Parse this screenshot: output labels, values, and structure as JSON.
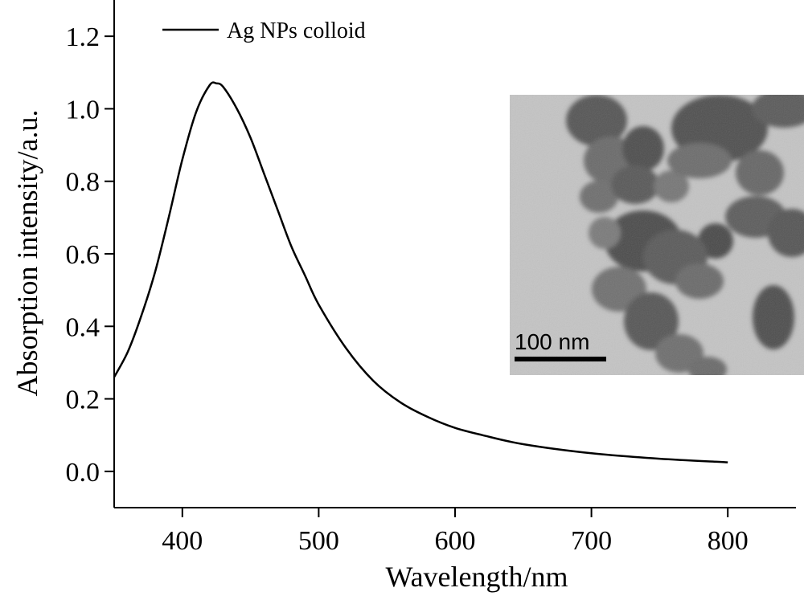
{
  "chart_data": {
    "type": "line",
    "title": "",
    "xlabel": "Wavelength/nm",
    "ylabel": "Absorption intensity/a.u.",
    "xlim": [
      350,
      850
    ],
    "ylim": [
      -0.1,
      1.3
    ],
    "x_ticks": [
      400,
      500,
      600,
      700,
      800
    ],
    "x_tick_labels": [
      "400",
      "500",
      "600",
      "700",
      "800"
    ],
    "y_ticks": [
      0.0,
      0.2,
      0.4,
      0.6,
      0.8,
      1.0,
      1.2
    ],
    "y_tick_labels": [
      "0.0",
      "0.2",
      "0.4",
      "0.6",
      "0.8",
      "1.0",
      "1.2"
    ],
    "grid": false,
    "legend": {
      "position": "top-left",
      "entries": [
        "Ag NPs colloid"
      ]
    },
    "series": [
      {
        "name": "Ag NPs colloid",
        "color": "#000000",
        "x": [
          350,
          360,
          370,
          380,
          390,
          400,
          410,
          420,
          425,
          430,
          440,
          450,
          460,
          470,
          480,
          490,
          500,
          520,
          540,
          560,
          580,
          600,
          620,
          650,
          700,
          750,
          800
        ],
        "y": [
          0.26,
          0.33,
          0.43,
          0.55,
          0.7,
          0.86,
          0.99,
          1.065,
          1.07,
          1.06,
          1.0,
          0.92,
          0.82,
          0.72,
          0.62,
          0.54,
          0.46,
          0.34,
          0.25,
          0.19,
          0.15,
          0.12,
          0.1,
          0.075,
          0.05,
          0.035,
          0.025
        ]
      }
    ]
  },
  "inset": {
    "description_icon": "tem-micrograph",
    "scale_bar_label": "100 nm"
  }
}
